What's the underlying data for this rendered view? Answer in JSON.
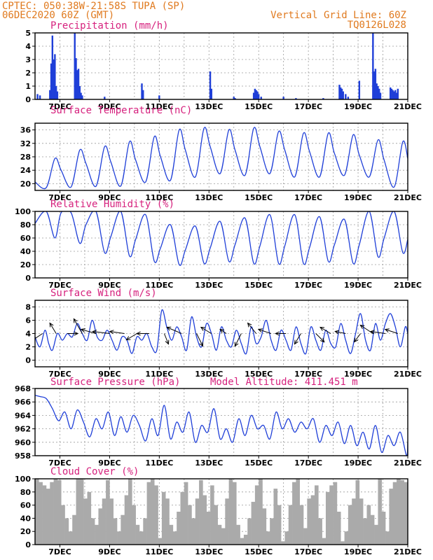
{
  "header": {
    "line1_left": "CPTEC:  050:38W-21:58S  TUPA (SP)",
    "line2_left": "06DEC2020 60Z (GMT)",
    "line2_right": "Vertical Grid Line: 60Z",
    "line3_right": "TQ0126L028"
  },
  "colors": {
    "series": "#1f3fd8",
    "cloud": "#aaaaaa",
    "title": "#d6227e",
    "header": "#e07a1f"
  },
  "chart_data": [
    {
      "type": "bar",
      "title": "Precipitation (mm/h)",
      "ylim": [
        0,
        5
      ],
      "yticks": [
        0,
        1,
        2,
        3,
        4,
        5
      ],
      "xlim": [
        6,
        21
      ],
      "xticks": [
        7,
        9,
        11,
        13,
        15,
        17,
        19,
        21
      ],
      "xtick_labels": [
        "7DEC",
        "9DEC",
        "11DEC",
        "13DEC",
        "15DEC",
        "17DEC",
        "19DEC",
        "21DEC"
      ],
      "x": [
        6.1,
        6.2,
        6.6,
        6.65,
        6.7,
        6.75,
        6.8,
        6.85,
        6.9,
        7.6,
        7.65,
        7.7,
        7.75,
        7.8,
        7.85,
        7.9,
        8.8,
        10.3,
        10.35,
        11.0,
        13.05,
        13.1,
        14.0,
        14.05,
        14.8,
        14.85,
        14.9,
        14.95,
        15.0,
        15.1,
        16.0,
        16.5,
        17.6,
        18.25,
        18.3,
        18.35,
        18.4,
        18.5,
        18.6,
        19.05,
        19.6,
        19.65,
        19.7,
        19.75,
        19.8,
        19.85,
        19.9,
        20.3,
        20.35,
        20.4,
        20.45,
        20.5,
        20.55,
        20.6
      ],
      "values": [
        0.4,
        0.3,
        0.7,
        2.7,
        4.8,
        3.0,
        3.4,
        1.0,
        0.6,
        5.0,
        3.1,
        2.2,
        2.3,
        1.0,
        0.5,
        0.3,
        0.2,
        1.2,
        0.7,
        0.3,
        2.1,
        0.8,
        0.2,
        0.1,
        0.5,
        0.8,
        0.7,
        0.6,
        0.4,
        0.2,
        0.2,
        0.1,
        0.1,
        1.1,
        0.9,
        0.8,
        0.6,
        0.4,
        0.2,
        1.4,
        5.0,
        2.1,
        2.3,
        1.2,
        1.0,
        0.8,
        0.5,
        0.9,
        0.8,
        0.7,
        0.6,
        0.7,
        0.5,
        0.8
      ]
    },
    {
      "type": "line",
      "title": "Surface Temperature (nC)",
      "ylim": [
        18,
        38
      ],
      "yticks": [
        20,
        24,
        28,
        32,
        36
      ],
      "xlim": [
        6,
        21
      ],
      "xticks": [
        7,
        9,
        11,
        13,
        15,
        17,
        19,
        21
      ],
      "xtick_labels": [
        "7DEC",
        "9DEC",
        "11DEC",
        "13DEC",
        "15DEC",
        "17DEC",
        "19DEC",
        "21DEC"
      ],
      "x": [
        6.0,
        6.45,
        6.8,
        7.05,
        7.45,
        7.8,
        8.05,
        8.45,
        8.8,
        9.05,
        9.45,
        9.8,
        10.05,
        10.45,
        10.8,
        11.05,
        11.45,
        11.8,
        12.05,
        12.45,
        12.8,
        13.05,
        13.45,
        13.8,
        14.05,
        14.45,
        14.8,
        15.05,
        15.45,
        15.8,
        16.05,
        16.45,
        16.8,
        17.05,
        17.45,
        17.8,
        18.05,
        18.45,
        18.8,
        19.05,
        19.45,
        19.8,
        20.05,
        20.45,
        20.8,
        21.0
      ],
      "values": [
        20.5,
        18.8,
        27.5,
        24.0,
        19.0,
        30.0,
        26.0,
        19.2,
        31.0,
        26.5,
        19.3,
        32.5,
        27.0,
        20.5,
        34.0,
        28.0,
        21.0,
        36.0,
        30.0,
        22.0,
        36.5,
        31.0,
        23.0,
        36.0,
        30.0,
        22.5,
        36.5,
        31.0,
        23.0,
        35.5,
        30.0,
        22.0,
        35.0,
        29.5,
        22.0,
        35.0,
        29.0,
        22.5,
        34.5,
        28.5,
        22.0,
        33.0,
        27.0,
        19.0,
        32.5,
        27.5
      ]
    },
    {
      "type": "line",
      "title": "Relative Humidity (%)",
      "ylim": [
        0,
        100
      ],
      "yticks": [
        0,
        20,
        40,
        60,
        80,
        100
      ],
      "xlim": [
        6,
        21
      ],
      "xticks": [
        7,
        9,
        11,
        13,
        15,
        17,
        19,
        21
      ],
      "xtick_labels": [
        "7DEC",
        "9DEC",
        "11DEC",
        "13DEC",
        "15DEC",
        "17DEC",
        "19DEC",
        "21DEC"
      ],
      "x": [
        6.0,
        6.45,
        6.8,
        7.05,
        7.45,
        7.8,
        8.05,
        8.45,
        8.8,
        9.05,
        9.45,
        9.8,
        10.05,
        10.45,
        10.8,
        11.05,
        11.45,
        11.8,
        12.05,
        12.45,
        12.8,
        13.05,
        13.45,
        13.8,
        14.05,
        14.45,
        14.8,
        15.05,
        15.45,
        15.8,
        16.05,
        16.45,
        16.8,
        17.05,
        17.45,
        17.8,
        18.05,
        18.45,
        18.8,
        19.05,
        19.45,
        19.8,
        20.05,
        20.45,
        20.8,
        21.0
      ],
      "values": [
        82,
        100,
        60,
        98,
        98,
        52,
        80,
        100,
        38,
        62,
        100,
        33,
        58,
        95,
        25,
        45,
        80,
        20,
        42,
        78,
        22,
        45,
        85,
        25,
        50,
        90,
        22,
        48,
        95,
        22,
        48,
        95,
        22,
        46,
        92,
        25,
        50,
        88,
        22,
        50,
        100,
        32,
        60,
        100,
        38,
        58
      ]
    },
    {
      "type": "line",
      "title": "Surface Wind (m/s)",
      "ylim": [
        -1,
        9
      ],
      "yticks": [
        0,
        2,
        4,
        6,
        8
      ],
      "xlim": [
        6,
        21
      ],
      "xticks": [
        7,
        9,
        11,
        13,
        15,
        17,
        19,
        21
      ],
      "xtick_labels": [
        "7DEC",
        "9DEC",
        "11DEC",
        "13DEC",
        "15DEC",
        "17DEC",
        "19DEC",
        "21DEC"
      ],
      "x": [
        6.0,
        6.2,
        6.4,
        6.55,
        6.7,
        6.9,
        7.1,
        7.3,
        7.5,
        7.7,
        7.9,
        8.1,
        8.3,
        8.5,
        8.7,
        8.9,
        9.1,
        9.3,
        9.5,
        9.7,
        9.9,
        10.1,
        10.3,
        10.5,
        10.7,
        10.9,
        11.1,
        11.3,
        11.5,
        11.7,
        11.9,
        12.1,
        12.3,
        12.5,
        12.7,
        12.9,
        13.1,
        13.3,
        13.5,
        13.7,
        13.9,
        14.1,
        14.3,
        14.5,
        14.7,
        14.9,
        15.1,
        15.3,
        15.5,
        15.7,
        15.9,
        16.1,
        16.3,
        16.5,
        16.7,
        16.9,
        17.1,
        17.3,
        17.5,
        17.7,
        17.9,
        18.1,
        18.3,
        18.5,
        18.7,
        18.9,
        19.1,
        19.3,
        19.5,
        19.7,
        19.9,
        20.1,
        20.3,
        20.5,
        20.7,
        20.9,
        21.0
      ],
      "values": [
        3.5,
        2.0,
        4.5,
        2.5,
        1.5,
        4.0,
        3.0,
        4.0,
        3.5,
        5.5,
        4.0,
        3.0,
        6.0,
        3.5,
        3.0,
        4.5,
        3.0,
        1.5,
        3.5,
        3.0,
        1.0,
        3.5,
        3.0,
        4.0,
        2.0,
        1.5,
        7.5,
        5.0,
        3.0,
        5.0,
        3.5,
        1.5,
        6.5,
        3.5,
        2.0,
        5.5,
        4.0,
        1.5,
        5.0,
        3.0,
        2.0,
        4.5,
        2.5,
        1.0,
        5.0,
        2.5,
        3.5,
        6.0,
        3.0,
        1.5,
        4.5,
        3.0,
        1.5,
        5.0,
        2.5,
        1.0,
        5.0,
        3.0,
        1.5,
        4.5,
        2.5,
        2.0,
        5.5,
        3.0,
        1.0,
        4.0,
        7.0,
        3.0,
        1.5,
        5.5,
        3.0,
        5.5,
        7.0,
        5.0,
        2.0,
        5.0,
        4.0
      ],
      "vectors": [
        {
          "x": 6.3,
          "u": -0.6,
          "v": -0.4
        },
        {
          "x": 6.85,
          "u": -0.3,
          "v": 0.5
        },
        {
          "x": 7.3,
          "u": 0.5,
          "v": 0.0
        },
        {
          "x": 7.9,
          "u": -0.4,
          "v": 0.7
        },
        {
          "x": 8.45,
          "u": -0.7,
          "v": 0.2
        },
        {
          "x": 9.0,
          "u": -0.8,
          "v": 0.1
        },
        {
          "x": 9.6,
          "u": -0.7,
          "v": 0.1
        },
        {
          "x": 10.1,
          "u": -0.5,
          "v": -0.3
        },
        {
          "x": 10.6,
          "u": -0.6,
          "v": 0.0
        },
        {
          "x": 11.2,
          "u": 0.2,
          "v": -0.5
        },
        {
          "x": 11.9,
          "u": -0.7,
          "v": 0.3
        },
        {
          "x": 12.5,
          "u": 0.3,
          "v": -0.6
        },
        {
          "x": 13.1,
          "u": -0.5,
          "v": 0.3
        },
        {
          "x": 13.7,
          "u": -0.3,
          "v": 0.2
        },
        {
          "x": 14.3,
          "u": -0.3,
          "v": -0.6
        },
        {
          "x": 14.9,
          "u": -0.4,
          "v": 0.5
        },
        {
          "x": 15.5,
          "u": -0.6,
          "v": 0.2
        },
        {
          "x": 16.1,
          "u": -0.5,
          "v": 0.0
        },
        {
          "x": 16.7,
          "u": -0.3,
          "v": -0.5
        },
        {
          "x": 17.3,
          "u": 0.4,
          "v": -0.4
        },
        {
          "x": 17.9,
          "u": -0.5,
          "v": 0.3
        },
        {
          "x": 18.5,
          "u": -0.5,
          "v": 0.1
        },
        {
          "x": 19.1,
          "u": -0.3,
          "v": -0.4
        },
        {
          "x": 19.6,
          "u": -0.6,
          "v": 0.4
        },
        {
          "x": 20.1,
          "u": -0.7,
          "v": 0.1
        },
        {
          "x": 20.6,
          "u": -0.6,
          "v": 0.2
        }
      ]
    },
    {
      "type": "line",
      "title": "Surface Pressure (hPa)",
      "annotation": "Model Altitude: 411.451  m",
      "ylim": [
        958,
        968
      ],
      "yticks": [
        958,
        960,
        962,
        964,
        966,
        968
      ],
      "xlim": [
        6,
        21
      ],
      "xticks": [
        7,
        9,
        11,
        13,
        15,
        17,
        19,
        21
      ],
      "xtick_labels": [
        "7DEC",
        "9DEC",
        "11DEC",
        "13DEC",
        "15DEC",
        "17DEC",
        "19DEC",
        "21DEC"
      ],
      "x": [
        6.0,
        6.2,
        6.45,
        6.7,
        6.95,
        7.2,
        7.45,
        7.7,
        7.95,
        8.2,
        8.45,
        8.7,
        8.95,
        9.2,
        9.45,
        9.7,
        9.95,
        10.2,
        10.45,
        10.7,
        10.95,
        11.2,
        11.45,
        11.7,
        11.95,
        12.2,
        12.45,
        12.7,
        12.95,
        13.2,
        13.45,
        13.7,
        13.95,
        14.2,
        14.45,
        14.7,
        14.95,
        15.2,
        15.45,
        15.7,
        15.95,
        16.2,
        16.45,
        16.7,
        16.95,
        17.2,
        17.45,
        17.7,
        17.95,
        18.2,
        18.45,
        18.7,
        18.95,
        19.2,
        19.45,
        19.7,
        19.95,
        20.2,
        20.45,
        20.7,
        20.95,
        21.0
      ],
      "values": [
        967.0,
        966.8,
        966.5,
        965.0,
        963.2,
        964.5,
        962.0,
        964.8,
        963.0,
        960.8,
        963.5,
        962.0,
        964.5,
        961.0,
        963.8,
        961.5,
        964.0,
        962.5,
        960.2,
        963.5,
        961.0,
        965.5,
        960.5,
        963.0,
        961.5,
        964.5,
        960.0,
        962.5,
        961.5,
        965.0,
        960.5,
        962.0,
        960.0,
        963.5,
        961.0,
        964.0,
        962.0,
        962.5,
        960.5,
        964.5,
        962.0,
        963.5,
        961.5,
        963.0,
        962.0,
        963.5,
        960.0,
        962.5,
        961.0,
        963.0,
        959.8,
        962.5,
        959.5,
        961.5,
        959.0,
        962.5,
        958.5,
        961.0,
        959.5,
        961.5,
        958.0,
        960.0
      ]
    },
    {
      "type": "area",
      "title": "Cloud Cover (%)",
      "ylim": [
        0,
        100
      ],
      "yticks": [
        0,
        20,
        40,
        60,
        80,
        100
      ],
      "xlim": [
        6,
        21
      ],
      "xticks": [
        7,
        9,
        11,
        13,
        15,
        17,
        19,
        21
      ],
      "xtick_labels": [
        "7DEC",
        "9DEC",
        "11DEC",
        "13DEC",
        "15DEC",
        "17DEC",
        "19DEC",
        "21DEC"
      ],
      "x": [
        6.0,
        6.15,
        6.3,
        6.45,
        6.6,
        6.75,
        6.9,
        7.05,
        7.2,
        7.35,
        7.5,
        7.65,
        7.8,
        7.95,
        8.1,
        8.25,
        8.4,
        8.55,
        8.7,
        8.85,
        9.0,
        9.15,
        9.3,
        9.45,
        9.6,
        9.75,
        9.9,
        10.05,
        10.2,
        10.35,
        10.5,
        10.65,
        10.8,
        10.95,
        11.1,
        11.25,
        11.4,
        11.55,
        11.7,
        11.85,
        12.0,
        12.15,
        12.3,
        12.45,
        12.6,
        12.75,
        12.9,
        13.05,
        13.2,
        13.35,
        13.5,
        13.65,
        13.8,
        13.95,
        14.1,
        14.25,
        14.4,
        14.55,
        14.7,
        14.85,
        15.0,
        15.15,
        15.3,
        15.45,
        15.6,
        15.75,
        15.9,
        16.05,
        16.2,
        16.35,
        16.5,
        16.65,
        16.8,
        16.95,
        17.1,
        17.25,
        17.4,
        17.55,
        17.7,
        17.85,
        18.0,
        18.15,
        18.3,
        18.45,
        18.6,
        18.75,
        18.9,
        19.05,
        19.2,
        19.35,
        19.5,
        19.65,
        19.8,
        19.95,
        20.1,
        20.25,
        20.4,
        20.55,
        20.7,
        20.85
      ],
      "values": [
        100,
        95,
        90,
        85,
        95,
        100,
        98,
        60,
        40,
        20,
        45,
        100,
        100,
        70,
        80,
        40,
        30,
        55,
        70,
        98,
        70,
        40,
        20,
        45,
        75,
        100,
        60,
        30,
        20,
        40,
        95,
        100,
        90,
        10,
        80,
        70,
        30,
        20,
        50,
        80,
        95,
        60,
        40,
        70,
        98,
        75,
        50,
        90,
        60,
        30,
        25,
        70,
        100,
        95,
        30,
        10,
        15,
        40,
        65,
        90,
        100,
        55,
        20,
        40,
        85,
        60,
        5,
        20,
        60,
        95,
        100,
        60,
        25,
        70,
        75,
        90,
        40,
        10,
        80,
        90,
        95,
        50,
        5,
        20,
        60,
        70,
        98,
        70,
        40,
        60,
        45,
        30,
        100,
        50,
        20,
        85,
        95,
        100,
        98,
        95
      ]
    }
  ]
}
